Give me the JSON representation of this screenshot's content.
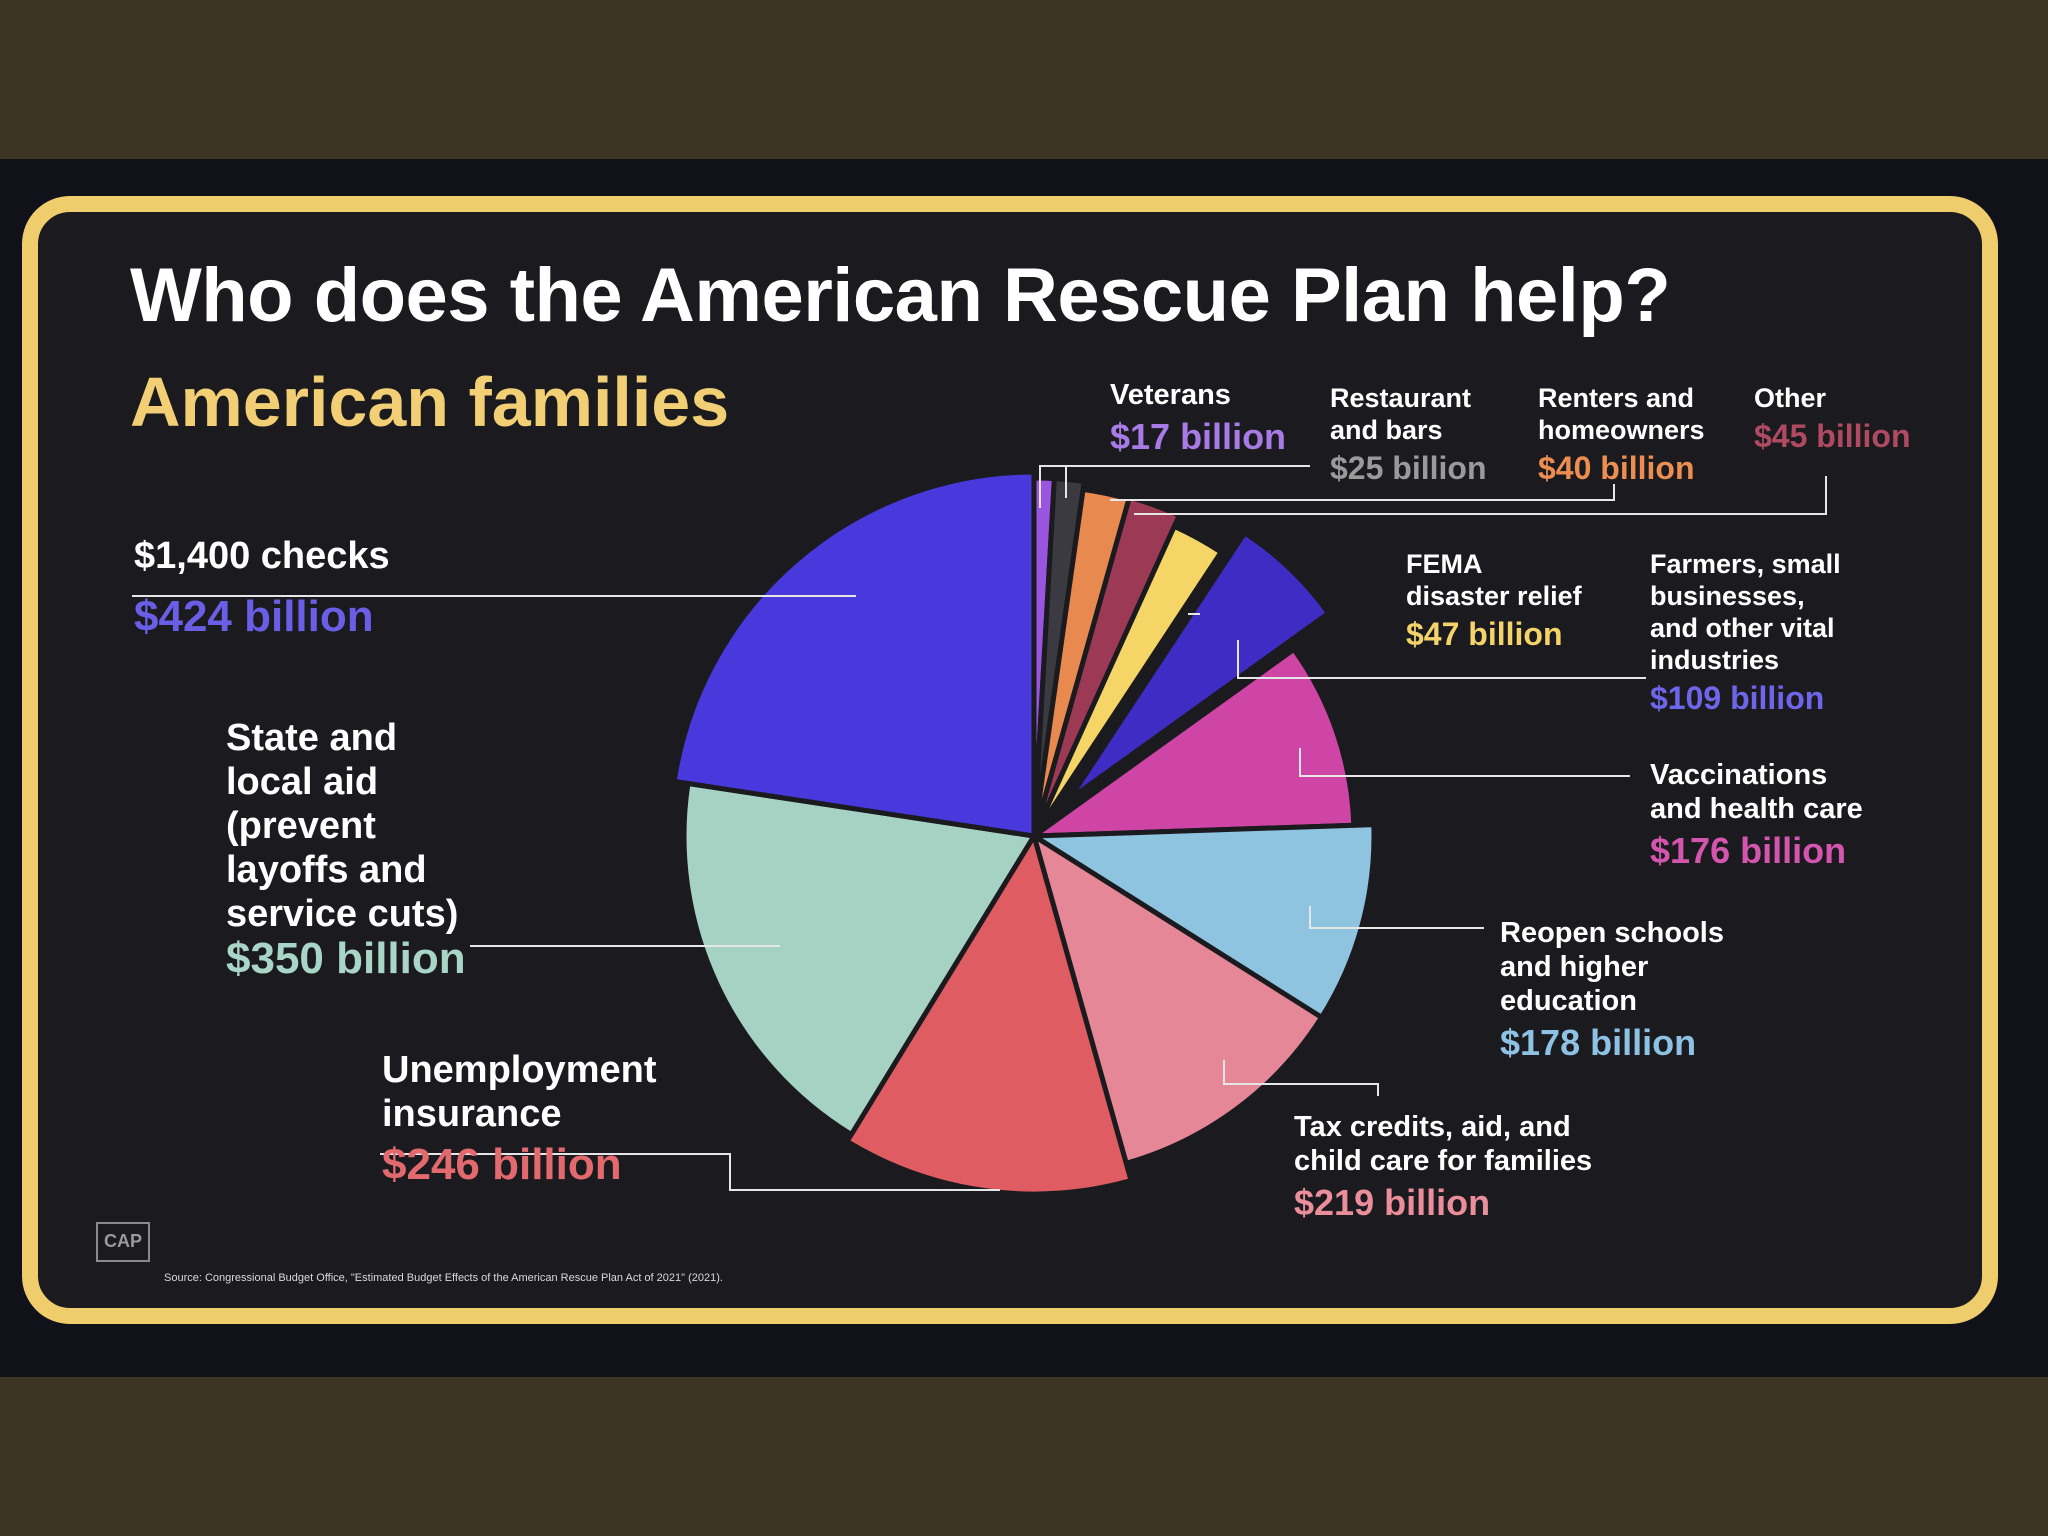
{
  "title": "Who does the American Rescue Plan help?",
  "subtitle": "American families",
  "source": "Source: Congressional Budget Office, \"Estimated Budget Effects of the American Rescue Plan Act of 2021\" (2021).",
  "logo": "CAP",
  "chart_data": {
    "type": "pie",
    "title": "Who does the American Rescue Plan help?",
    "subtitle": "American families",
    "unit": "billion USD",
    "slices": [
      {
        "name": "Veterans",
        "label_lines": [
          "Veterans"
        ],
        "value": 17,
        "value_label": "$17 billion",
        "color": "#9a55e0"
      },
      {
        "name": "Restaurant and bars",
        "label_lines": [
          "Restaurant",
          "and bars"
        ],
        "value": 25,
        "value_label": "$25 billion",
        "color": "#3a3a40"
      },
      {
        "name": "Renters and homeowners",
        "label_lines": [
          "Renters and",
          "homeowners"
        ],
        "value": 40,
        "value_label": "$40 billion",
        "color": "#e8894f"
      },
      {
        "name": "Other",
        "label_lines": [
          "Other"
        ],
        "value": 45,
        "value_label": "$45 billion",
        "color": "#9c3a56"
      },
      {
        "name": "FEMA disaster relief",
        "label_lines": [
          "FEMA",
          "disaster relief"
        ],
        "value": 47,
        "value_label": "$47 billion",
        "color": "#f5d566"
      },
      {
        "name": "Farmers, small businesses, and other vital industries",
        "label_lines": [
          "Farmers, small",
          "businesses,",
          "and other vital",
          "industries"
        ],
        "value": 109,
        "value_label": "$109 billion",
        "color": "#3f2cc4"
      },
      {
        "name": "Vaccinations and health care",
        "label_lines": [
          "Vaccinations",
          "and health care"
        ],
        "value": 176,
        "value_label": "$176 billion",
        "color": "#cf45a6"
      },
      {
        "name": "Reopen schools and higher education",
        "label_lines": [
          "Reopen schools",
          "and higher",
          "education"
        ],
        "value": 178,
        "value_label": "$178 billion",
        "color": "#8ec4e0"
      },
      {
        "name": "Tax credits, aid, and child care for families",
        "label_lines": [
          "Tax credits, aid, and",
          "child care for families"
        ],
        "value": 219,
        "value_label": "$219 billion",
        "color": "#e58796"
      },
      {
        "name": "Unemployment insurance",
        "label_lines": [
          "Unemployment",
          "insurance"
        ],
        "value": 246,
        "value_label": "$246 billion",
        "color": "#df5c62"
      },
      {
        "name": "State and local aid (prevent layoffs and service cuts)",
        "label_lines": [
          "State and",
          "local aid",
          "(prevent",
          "layoffs and",
          "service cuts)"
        ],
        "value": 350,
        "value_label": "$350 billion",
        "color": "#a5d2c2"
      },
      {
        "name": "$1,400 checks",
        "label_lines": [
          "$1,400 checks"
        ],
        "value": 424,
        "value_label": "$424 billion",
        "color": "#4938dc"
      }
    ],
    "value_colors": {
      "Veterans": "#a77ae6",
      "Restaurant and bars": "#9a9a9a",
      "Renters and homeowners": "#ec8d52",
      "Other": "#b04a63",
      "FEMA disaster relief": "#f4d46a",
      "Farmers, small businesses, and other vital industries": "#6e66ea",
      "Vaccinations and health care": "#d455ad",
      "Reopen schools and higher education": "#8ec2e4",
      "Tax credits, aid, and child care for families": "#eb8e9c",
      "Unemployment insurance": "#e26a6f",
      "State and local aid (prevent layoffs and service cuts)": "#a9d5c6",
      "$1,400 checks": "#6a5ee6"
    }
  }
}
